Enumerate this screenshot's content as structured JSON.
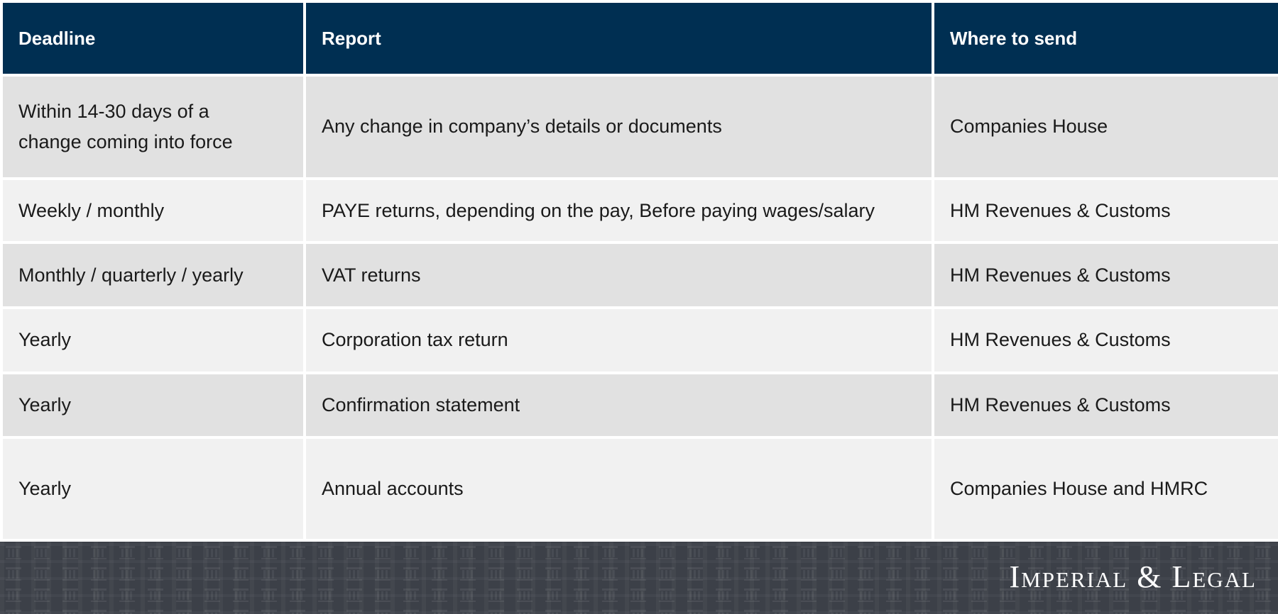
{
  "table": {
    "headers": [
      "Deadline",
      "Report",
      "Where to send"
    ],
    "rows": [
      {
        "deadline_line1": "Within 14-30 days of a",
        "deadline_line2": "change coming into force",
        "report": "Any change in company’s details or documents",
        "where": "Companies House"
      },
      {
        "deadline": "Weekly / monthly",
        "report": "PAYE returns, depending on the pay, Before paying wages/salary",
        "where": "HM Revenues & Customs"
      },
      {
        "deadline": "Monthly / quarterly / yearly",
        "report": "VAT returns",
        "where": "HM Revenues & Customs"
      },
      {
        "deadline": "Yearly",
        "report": "Corporation tax return",
        "where": "HM Revenues & Customs"
      },
      {
        "deadline": "Yearly",
        "report": "Confirmation statement",
        "where": "HM Revenues & Customs"
      },
      {
        "deadline": "Yearly",
        "report": "Annual accounts",
        "where": "Companies House and HMRC"
      }
    ]
  },
  "footer": {
    "logo_text": "Imperial & Legal"
  },
  "colors": {
    "header_bg": "#002f52",
    "row_odd": "#e1e1e1",
    "row_even": "#f1f1f1",
    "footer_bg": "#3c4048"
  }
}
